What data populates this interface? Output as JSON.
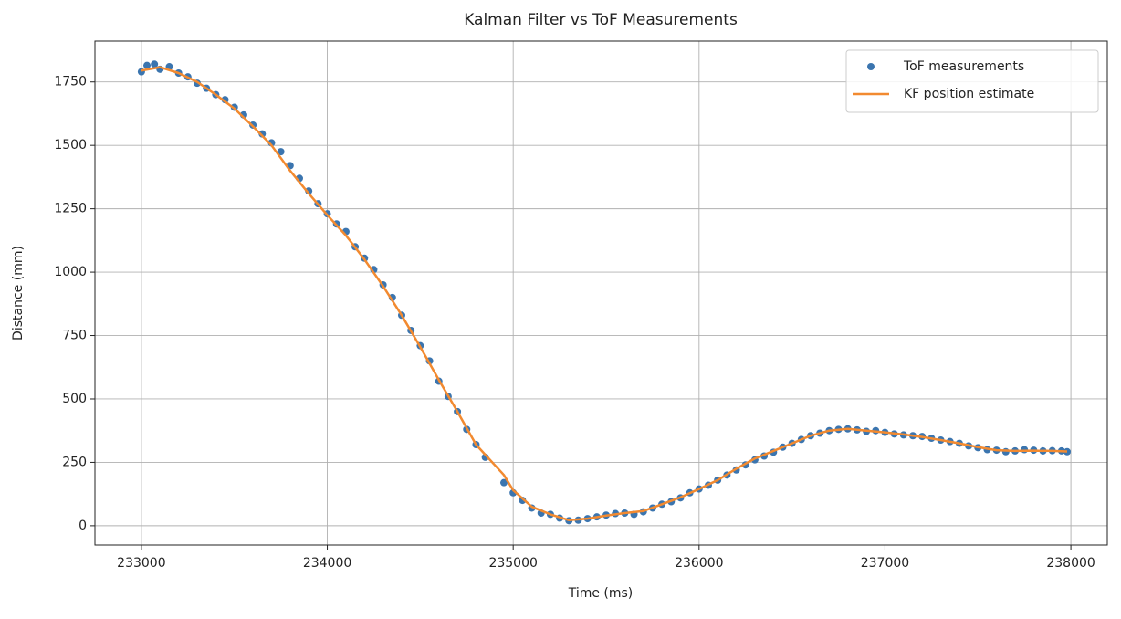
{
  "chart_data": {
    "type": "scatter",
    "title": "Kalman Filter vs ToF Measurements",
    "x_label": "Time (ms)",
    "y_label": "Distance (mm)",
    "xlim": [
      232750,
      238196
    ],
    "ylim": [
      -76,
      1911
    ],
    "xticks": [
      233000,
      234000,
      235000,
      236000,
      237000,
      238000
    ],
    "yticks": [
      0,
      250,
      500,
      750,
      1000,
      1250,
      1500,
      1750
    ],
    "grid": true,
    "legend": "upper right",
    "series": [
      {
        "name": "ToF measurements",
        "color": "#3b75af",
        "type": "scatter",
        "x": [
          233000,
          233030,
          233070,
          233100,
          233150,
          233200,
          233250,
          233300,
          233350,
          233400,
          233450,
          233500,
          233550,
          233600,
          233650,
          233700,
          233750,
          233800,
          233850,
          233900,
          233950,
          234000,
          234050,
          234100,
          234150,
          234200,
          234250,
          234300,
          234350,
          234400,
          234450,
          234500,
          234550,
          234600,
          234650,
          234700,
          234750,
          234800,
          234850,
          234950,
          235000,
          235050,
          235100,
          235150,
          235200,
          235250,
          235300,
          235350,
          235400,
          235450,
          235500,
          235550,
          235600,
          235650,
          235700,
          235750,
          235800,
          235850,
          235900,
          235950,
          236000,
          236050,
          236100,
          236150,
          236200,
          236250,
          236300,
          236350,
          236400,
          236450,
          236500,
          236550,
          236600,
          236650,
          236700,
          236750,
          236800,
          236850,
          236900,
          236950,
          237000,
          237050,
          237100,
          237150,
          237200,
          237250,
          237300,
          237350,
          237400,
          237450,
          237500,
          237550,
          237600,
          237650,
          237700,
          237750,
          237800,
          237850,
          237900,
          237950,
          237980
        ],
        "values": [
          1790,
          1815,
          1820,
          1800,
          1810,
          1785,
          1770,
          1745,
          1725,
          1700,
          1680,
          1650,
          1620,
          1580,
          1545,
          1510,
          1475,
          1420,
          1370,
          1320,
          1270,
          1230,
          1190,
          1160,
          1100,
          1055,
          1010,
          950,
          900,
          830,
          770,
          710,
          650,
          570,
          510,
          450,
          380,
          320,
          270,
          170,
          130,
          100,
          70,
          50,
          45,
          30,
          20,
          22,
          28,
          35,
          42,
          48,
          50,
          45,
          55,
          70,
          85,
          95,
          110,
          130,
          145,
          160,
          180,
          200,
          220,
          240,
          260,
          275,
          290,
          310,
          325,
          340,
          355,
          365,
          375,
          380,
          382,
          378,
          372,
          375,
          368,
          362,
          358,
          355,
          352,
          345,
          338,
          332,
          325,
          315,
          308,
          300,
          298,
          292,
          295,
          300,
          298,
          295,
          296,
          295,
          292
        ]
      },
      {
        "name": "KF position estimate",
        "color": "#f28a30",
        "type": "line",
        "x": [
          233000,
          233100,
          233200,
          233300,
          233400,
          233500,
          233600,
          233700,
          233800,
          233900,
          234000,
          234100,
          234200,
          234300,
          234400,
          234500,
          234600,
          234700,
          234800,
          234900,
          234950,
          235000,
          235100,
          235200,
          235300,
          235400,
          235500,
          235600,
          235700,
          235800,
          235900,
          236000,
          236100,
          236200,
          236300,
          236400,
          236500,
          236600,
          236700,
          236800,
          236900,
          237000,
          237100,
          237200,
          237300,
          237400,
          237500,
          237600,
          237700,
          237800,
          237900,
          237980
        ],
        "values": [
          1795,
          1808,
          1785,
          1750,
          1700,
          1645,
          1575,
          1500,
          1400,
          1310,
          1225,
          1145,
          1050,
          945,
          830,
          705,
          575,
          450,
          320,
          240,
          200,
          140,
          75,
          45,
          22,
          28,
          40,
          50,
          58,
          85,
          112,
          145,
          180,
          225,
          265,
          295,
          325,
          355,
          375,
          382,
          375,
          368,
          360,
          350,
          338,
          325,
          310,
          298,
          295,
          296,
          295,
          293
        ]
      }
    ]
  }
}
